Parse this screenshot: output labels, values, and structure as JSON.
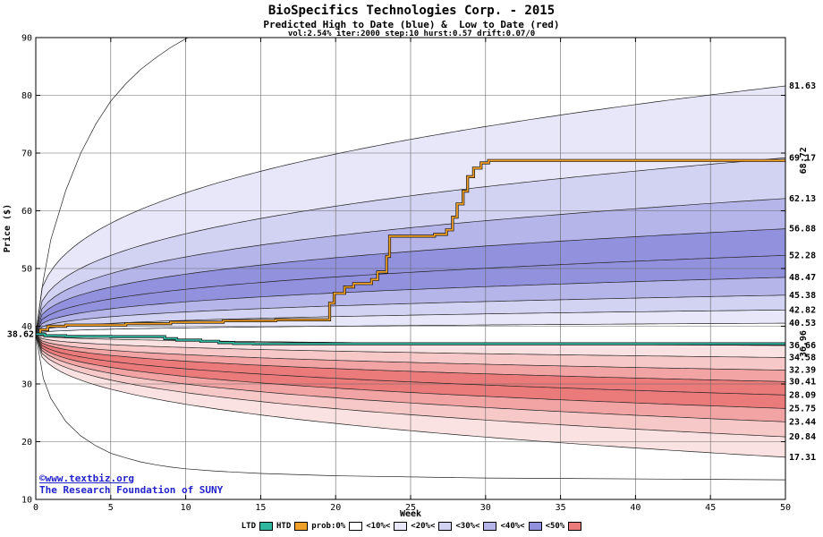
{
  "header": {
    "title": "BioSpecifics Technologies Corp. - 2015",
    "subtitle": "Predicted High to Date (blue) &  Low to Date (red)",
    "params": "vol:2.54% iter:2000 step:10 hurst:0.57 drift:0.07/0"
  },
  "footer": {
    "site": "©www.textbiz.org",
    "org": "The Research Foundation of SUNY"
  },
  "legend": {
    "items": [
      {
        "label": "LTD",
        "swatch": "#2fb79f"
      },
      {
        "label": "HTD",
        "swatch": "#f0a029"
      },
      {
        "label": "prob:0%",
        "swatch": "#ffffff"
      },
      {
        "label": "<10%<",
        "swatch": "#e7e7f9"
      },
      {
        "label": "<20%<",
        "swatch": "#d2d2f2"
      },
      {
        "label": "<30%<",
        "swatch": "#b5b5ea"
      },
      {
        "label": "<40%<",
        "swatch": "#9191dd"
      },
      {
        "label": "<50%",
        "swatch": "#eb7a7a"
      }
    ]
  },
  "chart_data": {
    "type": "area",
    "title": "BioSpecifics Technologies Corp. - 2015",
    "subtitle": "Predicted High to Date (blue) &  Low to Date (red)",
    "params_line": "vol:2.54% iter:2000 step:10 hurst:0.57 drift:0.07/0",
    "xlabel": "Week",
    "ylabel": "Price ($)",
    "xlim": [
      0,
      50
    ],
    "ylim": [
      10,
      90
    ],
    "xticks": [
      0,
      5,
      10,
      15,
      20,
      25,
      30,
      35,
      40,
      45,
      50
    ],
    "yticks": [
      10,
      20,
      30,
      40,
      50,
      60,
      70,
      80,
      90
    ],
    "grid": true,
    "legend_position": "bottom",
    "start_price": 38.62,
    "start_price_label": "38.62",
    "upper_band_ends": [
      40.53,
      42.82,
      45.38,
      48.47,
      52.28,
      56.88,
      62.13,
      69.17,
      81.63
    ],
    "lower_band_ends": [
      36.66,
      34.58,
      32.39,
      30.41,
      28.09,
      25.75,
      23.44,
      20.84,
      17.31
    ],
    "upper_extreme": [
      [
        0,
        38.62
      ],
      [
        0.5,
        48
      ],
      [
        1,
        55
      ],
      [
        2,
        63.5
      ],
      [
        3,
        70
      ],
      [
        4,
        75
      ],
      [
        5,
        79
      ],
      [
        6,
        82
      ],
      [
        7,
        84.5
      ],
      [
        8,
        86.5
      ],
      [
        9,
        88.3
      ],
      [
        10,
        89.8
      ],
      [
        11,
        91
      ],
      [
        13,
        93
      ],
      [
        20,
        95
      ],
      [
        30,
        96.5
      ],
      [
        50,
        97.5
      ]
    ],
    "lower_extreme": [
      [
        0,
        38.62
      ],
      [
        0.5,
        31
      ],
      [
        1,
        27.5
      ],
      [
        2,
        23.5
      ],
      [
        3,
        21
      ],
      [
        4,
        19.3
      ],
      [
        5,
        18
      ],
      [
        6,
        17.2
      ],
      [
        7,
        16.5
      ],
      [
        8,
        16
      ],
      [
        9,
        15.6
      ],
      [
        10,
        15.3
      ],
      [
        12,
        14.9
      ],
      [
        15,
        14.5
      ],
      [
        20,
        14.1
      ],
      [
        30,
        13.7
      ],
      [
        50,
        13.4
      ]
    ],
    "band_exponent": 0.35,
    "blue_palette": [
      "#ffffff",
      "#e7e7f9",
      "#d2d2f2",
      "#b5b5ea",
      "#9191dd"
    ],
    "red_palette": [
      "#ffffff",
      "#fbe2e2",
      "#f7c8c8",
      "#f2a4a4",
      "#eb7a7a"
    ],
    "label_color_current": "#00a43c",
    "series": [
      {
        "name": "HTD",
        "color": "#f0a029",
        "current_value": 68.72,
        "current_label": "68.72",
        "points": [
          [
            0,
            38.62
          ],
          [
            0.3,
            39.4
          ],
          [
            0.8,
            40.0
          ],
          [
            2,
            40.2
          ],
          [
            6,
            40.45
          ],
          [
            9,
            40.7
          ],
          [
            12.5,
            40.95
          ],
          [
            16,
            41.1
          ],
          [
            19.6,
            44.0
          ],
          [
            19.9,
            45.7
          ],
          [
            20.6,
            46.8
          ],
          [
            21.2,
            47.4
          ],
          [
            22.4,
            48.1
          ],
          [
            22.8,
            49.4
          ],
          [
            23.4,
            52.1
          ],
          [
            23.6,
            55.6
          ],
          [
            26.6,
            55.9
          ],
          [
            27.4,
            56.7
          ],
          [
            27.8,
            58.9
          ],
          [
            28.1,
            61.2
          ],
          [
            28.5,
            63.4
          ],
          [
            28.8,
            65.9
          ],
          [
            29.2,
            67.4
          ],
          [
            29.7,
            68.3
          ],
          [
            30.2,
            68.72
          ],
          [
            50,
            68.72
          ]
        ]
      },
      {
        "name": "LTD",
        "color": "#2fb79f",
        "current_value": 36.96,
        "current_label": "36.96",
        "points": [
          [
            0,
            38.62
          ],
          [
            0.6,
            38.35
          ],
          [
            2,
            38.25
          ],
          [
            5,
            38.2
          ],
          [
            8.6,
            37.85
          ],
          [
            9.4,
            37.6
          ],
          [
            11,
            37.4
          ],
          [
            12.2,
            37.15
          ],
          [
            13.2,
            37.0
          ],
          [
            14.5,
            36.96
          ],
          [
            50,
            36.96
          ]
        ]
      }
    ]
  }
}
